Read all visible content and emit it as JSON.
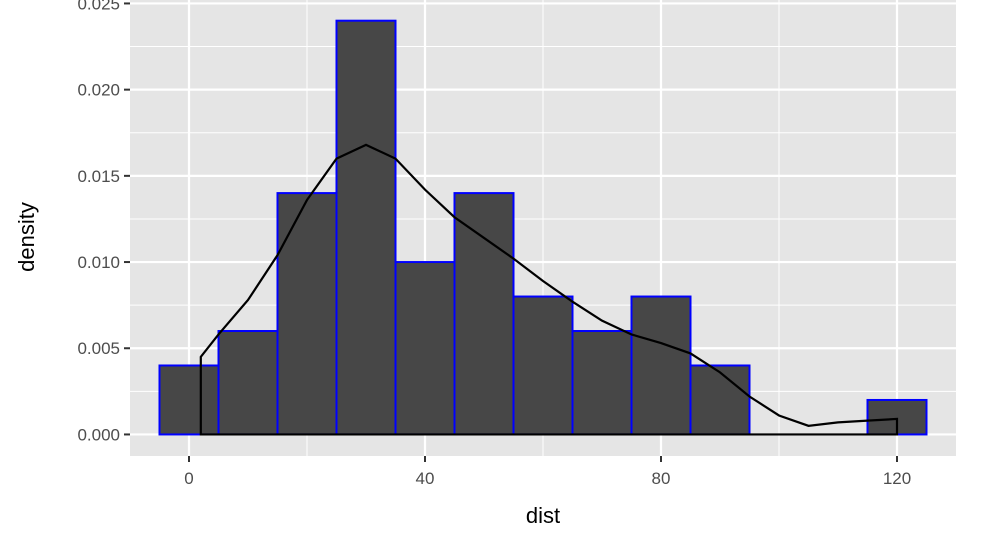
{
  "chart_data": {
    "type": "histogram",
    "title": "",
    "xlabel": "dist",
    "ylabel": "density",
    "xlim": [
      -10,
      130
    ],
    "ylim": [
      -0.00125,
      0.0252
    ],
    "x_ticks": [
      0,
      40,
      80,
      120
    ],
    "x_tick_labels": [
      "0",
      "40",
      "80",
      "120"
    ],
    "y_ticks": [
      0,
      0.005,
      0.01,
      0.015,
      0.02,
      0.025
    ],
    "y_tick_labels": [
      "0.000",
      "0.005",
      "0.010",
      "0.015",
      "0.020",
      "0.025"
    ],
    "grid": true,
    "bins": [
      {
        "x0": -5,
        "x1": 5,
        "density": 0.004
      },
      {
        "x0": 5,
        "x1": 15,
        "density": 0.006
      },
      {
        "x0": 15,
        "x1": 25,
        "density": 0.014
      },
      {
        "x0": 25,
        "x1": 35,
        "density": 0.024
      },
      {
        "x0": 35,
        "x1": 45,
        "density": 0.01
      },
      {
        "x0": 45,
        "x1": 55,
        "density": 0.014
      },
      {
        "x0": 55,
        "x1": 65,
        "density": 0.008
      },
      {
        "x0": 65,
        "x1": 75,
        "density": 0.006
      },
      {
        "x0": 75,
        "x1": 85,
        "density": 0.008
      },
      {
        "x0": 85,
        "x1": 95,
        "density": 0.004
      },
      {
        "x0": 95,
        "x1": 105,
        "density": 0.0
      },
      {
        "x0": 105,
        "x1": 115,
        "density": 0.0
      },
      {
        "x0": 115,
        "x1": 125,
        "density": 0.002
      }
    ],
    "density_curve": {
      "x": [
        2,
        5,
        10,
        15,
        20,
        25,
        30,
        35,
        40,
        45,
        50,
        55,
        60,
        65,
        70,
        75,
        80,
        85,
        90,
        95,
        100,
        105,
        110,
        115,
        120
      ],
      "y": [
        0.0045,
        0.0058,
        0.0078,
        0.0104,
        0.0136,
        0.016,
        0.0168,
        0.016,
        0.0142,
        0.0126,
        0.0114,
        0.0102,
        0.0089,
        0.0077,
        0.0066,
        0.0058,
        0.0053,
        0.0047,
        0.0036,
        0.0022,
        0.0011,
        0.0005,
        0.0007,
        0.0008,
        0.0009
      ]
    },
    "colors": {
      "panel_background": "#e5e5e5",
      "grid": "#ffffff",
      "bar_fill": "#474747",
      "bar_outline": "#0000ff",
      "curve": "#000000",
      "tick_text": "#4d4d4d",
      "axis_title": "#000000"
    }
  }
}
